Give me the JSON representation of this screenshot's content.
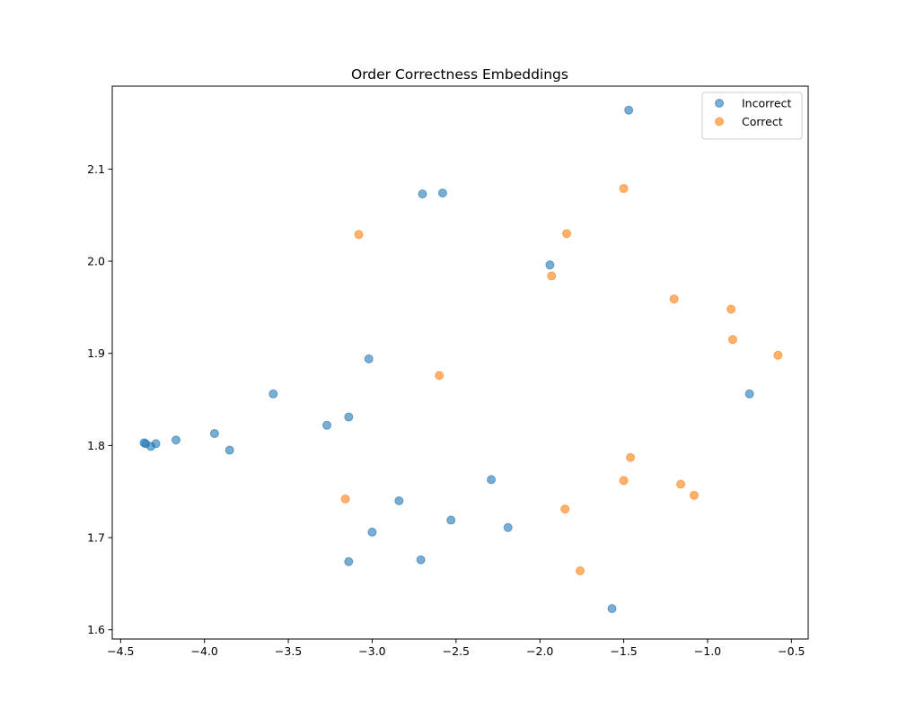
{
  "chart_data": {
    "type": "scatter",
    "title": "Order Correctness Embeddings",
    "xlabel": "",
    "ylabel": "",
    "xlim": [
      -4.55,
      -0.4
    ],
    "ylim": [
      1.59,
      2.19
    ],
    "xticks": [
      -4.5,
      -4.0,
      -3.5,
      -3.0,
      -2.5,
      -2.0,
      -1.5,
      -1.0,
      -0.5
    ],
    "xtick_labels": [
      "−4.5",
      "−4.0",
      "−3.5",
      "−3.0",
      "−2.5",
      "−2.0",
      "−1.5",
      "−1.0",
      "−0.5"
    ],
    "yticks": [
      1.6,
      1.7,
      1.8,
      1.9,
      2.0,
      2.1
    ],
    "ytick_labels": [
      "1.6",
      "1.7",
      "1.8",
      "1.9",
      "2.0",
      "2.1"
    ],
    "grid": false,
    "legend_position": "top-right",
    "series": [
      {
        "name": "Incorrect",
        "color": "#1f77b4",
        "points": [
          [
            -1.47,
            2.164
          ],
          [
            -2.7,
            2.073
          ],
          [
            -2.58,
            2.074
          ],
          [
            -1.94,
            1.996
          ],
          [
            -3.02,
            1.894
          ],
          [
            -3.59,
            1.856
          ],
          [
            -0.75,
            1.856
          ],
          [
            -3.14,
            1.831
          ],
          [
            -3.27,
            1.822
          ],
          [
            -3.94,
            1.813
          ],
          [
            -4.36,
            1.803
          ],
          [
            -4.35,
            1.802
          ],
          [
            -4.29,
            1.802
          ],
          [
            -4.32,
            1.799
          ],
          [
            -4.17,
            1.806
          ],
          [
            -3.85,
            1.795
          ],
          [
            -2.29,
            1.763
          ],
          [
            -2.84,
            1.74
          ],
          [
            -2.53,
            1.719
          ],
          [
            -2.19,
            1.711
          ],
          [
            -3.0,
            1.706
          ],
          [
            -3.14,
            1.674
          ],
          [
            -2.71,
            1.676
          ],
          [
            -1.57,
            1.623
          ]
        ]
      },
      {
        "name": "Correct",
        "color": "#ff7f0e",
        "points": [
          [
            -1.5,
            2.079
          ],
          [
            -3.08,
            2.029
          ],
          [
            -1.84,
            2.03
          ],
          [
            -1.93,
            1.984
          ],
          [
            -1.2,
            1.959
          ],
          [
            -0.86,
            1.948
          ],
          [
            -0.85,
            1.915
          ],
          [
            -0.58,
            1.898
          ],
          [
            -2.6,
            1.876
          ],
          [
            -1.46,
            1.787
          ],
          [
            -1.5,
            1.762
          ],
          [
            -1.16,
            1.758
          ],
          [
            -1.08,
            1.746
          ],
          [
            -3.16,
            1.742
          ],
          [
            -1.85,
            1.731
          ],
          [
            -1.76,
            1.664
          ]
        ]
      }
    ]
  }
}
